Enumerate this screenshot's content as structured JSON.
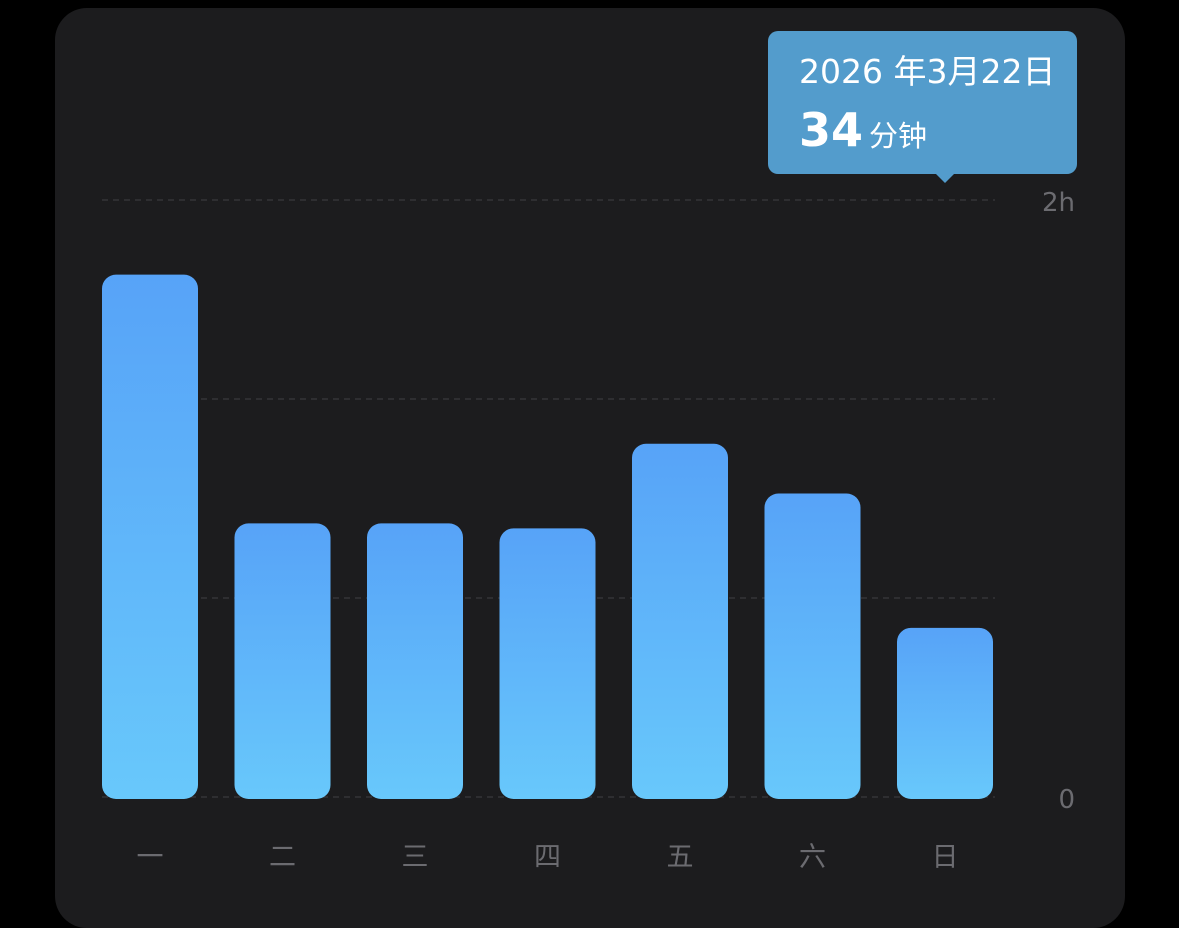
{
  "chart_data": {
    "type": "bar",
    "categories": [
      "一",
      "二",
      "三",
      "四",
      "五",
      "六",
      "日"
    ],
    "values": [
      105,
      55,
      55,
      54,
      71,
      61,
      34
    ],
    "unit": "minutes",
    "ylim": [
      0,
      120
    ],
    "y_tick_labels": [
      {
        "value": 120,
        "label": "2h"
      },
      {
        "value": 0,
        "label": "0"
      }
    ],
    "gridlines_at": [
      0,
      40,
      80,
      120
    ],
    "grid": true,
    "bar_gradient": [
      "#57a3f8",
      "#68c8fb"
    ]
  },
  "tooltip": {
    "date": "2026 年3月22日",
    "value": "34",
    "unit": "分钟",
    "color": "#539ccc"
  }
}
